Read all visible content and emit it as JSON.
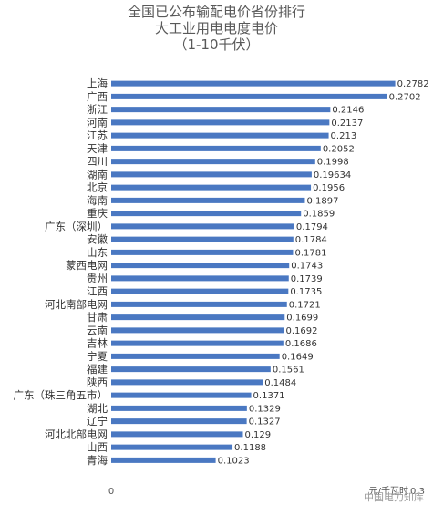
{
  "chart_data": {
    "type": "bar",
    "orientation": "horizontal",
    "title": [
      "全国已公布输配电价省份排行",
      "大工业用电电度电价",
      "（1-10千伏）"
    ],
    "unit_label": "元/千瓦时",
    "xlim": [
      0,
      0.3
    ],
    "x_tick_labels": [
      "0",
      "0.3"
    ],
    "grid": false,
    "bar_color": "#4a78c2",
    "categories": [
      "上海",
      "广西",
      "浙江",
      "河南",
      "江苏",
      "天津",
      "四川",
      "湖南",
      "北京",
      "海南",
      "重庆",
      "广东（深圳）",
      "安徽",
      "山东",
      "蒙西电网",
      "贵州",
      "江西",
      "河北南部电网",
      "甘肃",
      "云南",
      "吉林",
      "宁夏",
      "福建",
      "陕西",
      "广东（珠三角五市）",
      "湖北",
      "辽宁",
      "河北北部电网",
      "山西",
      "青海"
    ],
    "values": [
      0.2782,
      0.2702,
      0.2146,
      0.2137,
      0.213,
      0.2052,
      0.1998,
      0.19634,
      0.1956,
      0.1897,
      0.1859,
      0.1794,
      0.1784,
      0.1781,
      0.1743,
      0.1739,
      0.1735,
      0.1721,
      0.1699,
      0.1692,
      0.1686,
      0.1649,
      0.1561,
      0.1484,
      0.1371,
      0.1329,
      0.1327,
      0.129,
      0.1188,
      0.1023
    ],
    "value_labels": [
      "0.2782",
      "0.2702",
      "0.2146",
      "0.2137",
      "0.213",
      "0.2052",
      "0.1998",
      "0.19634",
      "0.1956",
      "0.1897",
      "0.1859",
      "0.1794",
      "0.1784",
      "0.1781",
      "0.1743",
      "0.1739",
      "0.1735",
      "0.1721",
      "0.1699",
      "0.1692",
      "0.1686",
      "0.1649",
      "0.1561",
      "0.1484",
      "0.1371",
      "0.1329",
      "0.1327",
      "0.129",
      "0.1188",
      "0.1023"
    ]
  },
  "watermark": "中国电力知库"
}
